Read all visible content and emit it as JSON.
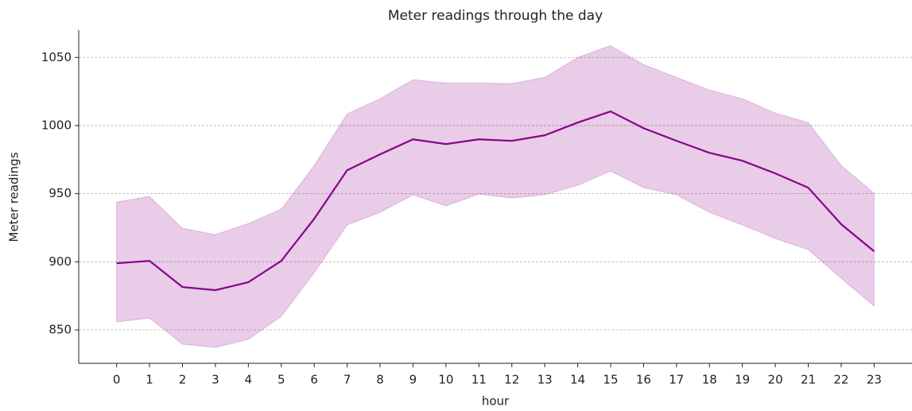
{
  "chart_data": {
    "type": "line",
    "title": "Meter readings through the day",
    "xlabel": "hour",
    "ylabel": "Meter readings",
    "x": [
      0,
      1,
      2,
      3,
      4,
      5,
      6,
      7,
      8,
      9,
      10,
      11,
      12,
      13,
      14,
      15,
      16,
      17,
      18,
      19,
      20,
      21,
      22,
      23
    ],
    "series": [
      {
        "color": "#8b008b",
        "band_color": "#8b008b",
        "values": [
          898.9,
          900.7,
          881.5,
          879.2,
          885.0,
          900.7,
          931.6,
          967.2,
          978.9,
          989.9,
          986.4,
          989.9,
          988.8,
          992.9,
          1002.2,
          1010.4,
          998.1,
          988.8,
          980.0,
          974.2,
          964.9,
          954.4,
          927.6,
          907.7
        ],
        "band_upper": [
          943.9,
          948.0,
          924.6,
          920.0,
          928.1,
          938.6,
          970.7,
          1008.6,
          1019.7,
          1033.7,
          1031.3,
          1031.3,
          1030.8,
          1035.4,
          1050.0,
          1058.7,
          1044.8,
          1035.4,
          1026.1,
          1019.7,
          1009.2,
          1002.2,
          970.7,
          950.3
        ],
        "band_lower": [
          855.8,
          858.7,
          839.5,
          837.2,
          843.0,
          859.9,
          892.0,
          927.0,
          936.3,
          949.1,
          941.0,
          949.7,
          946.8,
          949.1,
          956.1,
          966.6,
          954.4,
          949.1,
          936.3,
          927.0,
          917.1,
          908.9,
          887.9,
          867.5
        ]
      }
    ],
    "xlim": [
      -1.15,
      24.15
    ],
    "xticks": [
      0,
      1,
      2,
      3,
      4,
      5,
      6,
      7,
      8,
      9,
      10,
      11,
      12,
      13,
      14,
      15,
      16,
      17,
      18,
      19,
      20,
      21,
      22,
      23
    ],
    "ylim": [
      825.5,
      1070
    ],
    "yticks": [
      850,
      900,
      950,
      1000,
      1050
    ],
    "grid": "y"
  }
}
